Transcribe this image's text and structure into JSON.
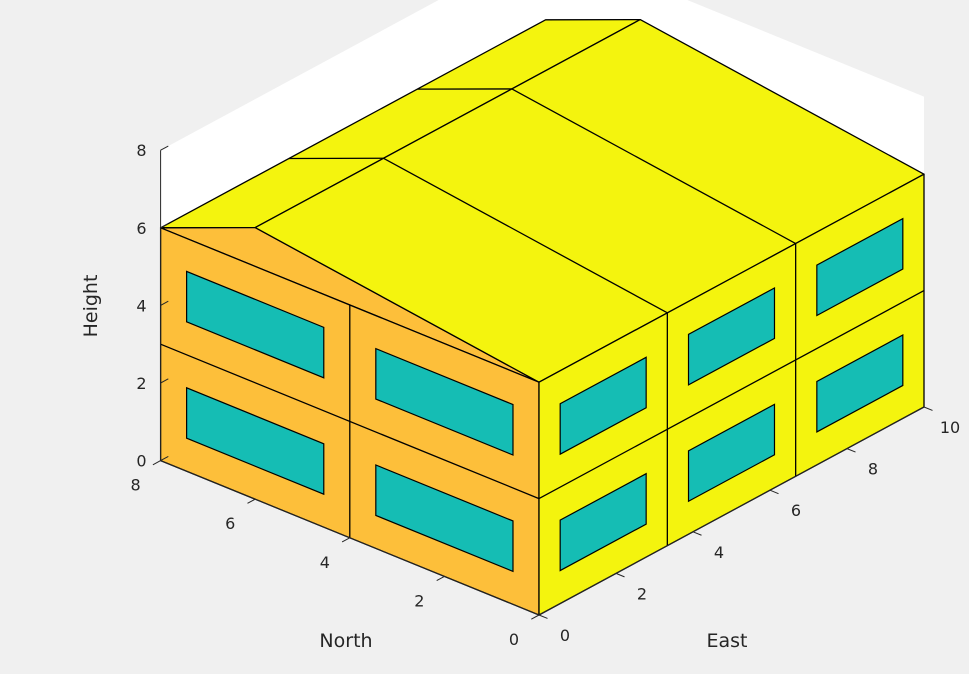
{
  "colors": {
    "figure_bg": "#f0f0f0",
    "axes_bg": "#ffffff",
    "east_face": "#f4f40e",
    "roof": "#f4f40e",
    "north_face": "#fdbf3a",
    "window": "#15bdb4",
    "edge": "#000000",
    "axis": "#262626"
  },
  "chart_data": {
    "type": "3d-building",
    "xlabel": "East",
    "ylabel": "North",
    "zlabel": "Height",
    "xlim": [
      0,
      10
    ],
    "ylim": [
      0,
      8
    ],
    "zlim": [
      0,
      8
    ],
    "xticks": [
      "0",
      "2",
      "4",
      "6",
      "8",
      "10"
    ],
    "yticks": [
      "0",
      "2",
      "4",
      "6",
      "8"
    ],
    "zticks": [
      "0",
      "2",
      "4",
      "6",
      "8"
    ],
    "building": {
      "east_extent": 10,
      "north_extent": 8,
      "floor_height": 3,
      "floors": 2,
      "bays_east": 3,
      "bays_north": 2,
      "roof_ridge_height": 7,
      "roof_ridge_north": 6
    },
    "windows": [
      {
        "face": "north",
        "floor": 1,
        "bay": 1
      },
      {
        "face": "north",
        "floor": 1,
        "bay": 2
      },
      {
        "face": "north",
        "floor": 2,
        "bay": 1
      },
      {
        "face": "north",
        "floor": 2,
        "bay": 2
      },
      {
        "face": "east",
        "floor": 1,
        "bay": 1
      },
      {
        "face": "east",
        "floor": 1,
        "bay": 2
      },
      {
        "face": "east",
        "floor": 1,
        "bay": 3
      },
      {
        "face": "east",
        "floor": 2,
        "bay": 1
      },
      {
        "face": "east",
        "floor": 2,
        "bay": 2
      },
      {
        "face": "east",
        "floor": 2,
        "bay": 3
      }
    ]
  }
}
